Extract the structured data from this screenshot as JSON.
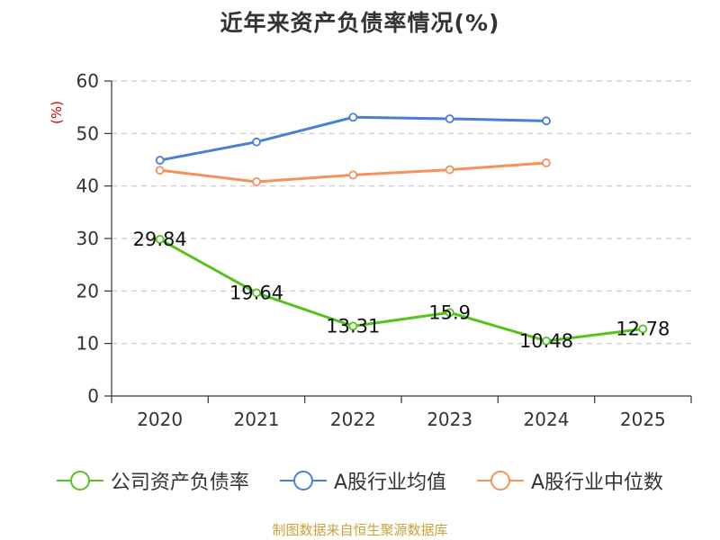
{
  "chart_data": {
    "type": "line",
    "title": "近年来资产负债率情况(%)",
    "ylabel": "(%)",
    "xlabel": "",
    "categories": [
      "2020",
      "2021",
      "2022",
      "2023",
      "2024",
      "2025"
    ],
    "ylim": [
      0,
      60
    ],
    "yticks": [
      0,
      10,
      20,
      30,
      40,
      50,
      60
    ],
    "grid": true,
    "legend_position": "bottom",
    "series": [
      {
        "name": "公司资产负债率",
        "color": "#52c41a",
        "values": [
          29.84,
          19.64,
          13.31,
          15.9,
          10.48,
          12.78
        ],
        "labels": [
          "29.84",
          "19.64",
          "13.31",
          "15.9",
          "10.48",
          "12.78"
        ]
      },
      {
        "name": "A股行业均值",
        "color": "#4a7fd6",
        "values": [
          44.9,
          48.4,
          53.1,
          52.8,
          52.4,
          null
        ]
      },
      {
        "name": "A股行业中位数",
        "color": "#f5915a",
        "values": [
          43.0,
          40.8,
          42.1,
          43.1,
          44.4,
          null
        ]
      }
    ],
    "source": "制图数据来自恒生聚源数据库"
  }
}
